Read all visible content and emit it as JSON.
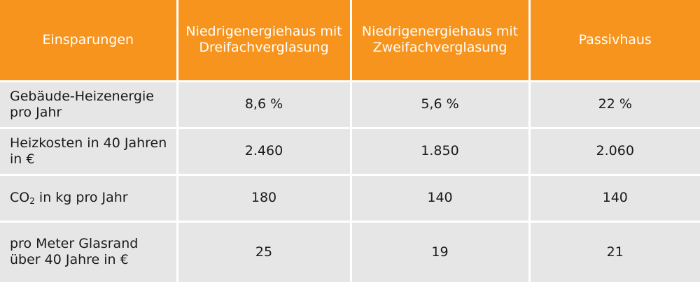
{
  "table": {
    "headers": [
      "Einsparungen",
      "Niedrigenergiehaus mit Dreifachverglasung",
      "Niedrigenergiehaus mit Zweifachverglasung",
      "Passivhaus"
    ],
    "rows": [
      {
        "label": "Gebäude-Heizenergie pro Jahr",
        "values": [
          "8,6 %",
          "5,6 %",
          "22 %"
        ]
      },
      {
        "label": "Heizkosten in 40 Jahren in €",
        "values": [
          "2.460",
          "1.850",
          "2.060"
        ]
      },
      {
        "label_main": "CO",
        "label_sub": "2",
        "label_rest": " in kg pro Jahr",
        "values": [
          "180",
          "140",
          "140"
        ]
      },
      {
        "label": "pro Meter Glasrand über 40 Jahre in €",
        "values": [
          "25",
          "19",
          "21"
        ]
      }
    ]
  },
  "colors": {
    "header_bg": "#f7941d",
    "header_text": "#ffffff",
    "cell_bg": "#e6e6e6",
    "cell_text": "#1a1a1a"
  }
}
